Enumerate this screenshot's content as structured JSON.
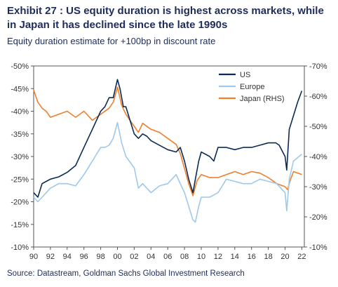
{
  "header": {
    "title": "Exhibit 27 : US equity duration is highest across markets, while in Japan it has declined since the late 1990s",
    "subtitle": "Equity duration estimate for +100bp in discount rate"
  },
  "footer": {
    "source": "Source: Datastream, Goldman Sachs Global Investment Research"
  },
  "colors": {
    "US": "#0b2a55",
    "Europe": "#9ec8ec",
    "Japan": "#ee7f2d"
  },
  "chart_data": {
    "type": "line",
    "title": "Exhibit 27 : US equity duration is highest across markets, while in Japan it has declined since the late 1990s",
    "subtitle": "Equity duration estimate for +100bp in discount rate",
    "x_tick_labels": [
      "90",
      "92",
      "94",
      "96",
      "98",
      "00",
      "02",
      "04",
      "06",
      "08",
      "10",
      "12",
      "14",
      "16",
      "18",
      "20",
      "22"
    ],
    "x_ticks": [
      1990,
      1992,
      1994,
      1996,
      1998,
      2000,
      2002,
      2004,
      2006,
      2008,
      2010,
      2012,
      2014,
      2016,
      2018,
      2020,
      2022
    ],
    "xlim": [
      1990,
      2022.3
    ],
    "left_axis": {
      "ticks": [
        -50,
        -45,
        -40,
        -35,
        -30,
        -25,
        -20,
        -15,
        -10
      ],
      "labels": [
        "-50%",
        "-45%",
        "-40%",
        "-35%",
        "-30%",
        "-25%",
        "-20%",
        "-15%",
        "-10%"
      ],
      "range": [
        -50,
        -10
      ]
    },
    "right_axis": {
      "ticks": [
        -70,
        -60,
        -50,
        -40,
        -30,
        -20,
        -10
      ],
      "labels": [
        "-70%",
        "-60%",
        "-50%",
        "-40%",
        "-30%",
        "-20%",
        "-10%"
      ],
      "range": [
        -70,
        -10
      ]
    },
    "legend": {
      "position": "top-right",
      "entries": [
        "US",
        "Europe",
        "Japan (RHS)"
      ]
    },
    "series": [
      {
        "name": "US",
        "axis": "left",
        "x": [
          1990,
          1990.5,
          1991,
          1991.5,
          1992,
          1993,
          1994,
          1995,
          1996,
          1997,
          1998,
          1998.5,
          1999,
          1999.5,
          2000,
          2000.3,
          2000.7,
          2001,
          2001.5,
          2002,
          2002.5,
          2003,
          2003.5,
          2004,
          2005,
          2006,
          2007,
          2007.5,
          2008,
          2008.5,
          2009,
          2009.3,
          2009.7,
          2010,
          2011,
          2011.5,
          2012,
          2013,
          2014,
          2015,
          2016,
          2017,
          2018,
          2018.9,
          2019.3,
          2020,
          2020.2,
          2020.5,
          2021,
          2021.5,
          2022
        ],
        "values": [
          -22,
          -21,
          -24,
          -24.5,
          -25,
          -25.5,
          -26.5,
          -28,
          -32,
          -36,
          -40,
          -41,
          -43,
          -43,
          -47,
          -45,
          -41,
          -41,
          -38,
          -35,
          -34,
          -35,
          -34.5,
          -33.5,
          -32.5,
          -31.5,
          -31,
          -32,
          -29,
          -25,
          -22,
          -25,
          -29,
          -31,
          -30,
          -29,
          -32,
          -32,
          -31.5,
          -32,
          -32,
          -32.5,
          -33,
          -33,
          -32.5,
          -30,
          -27,
          -36,
          -39,
          -42,
          -44.5
        ]
      },
      {
        "name": "Europe",
        "axis": "left",
        "x": [
          1990,
          1990.5,
          1991,
          1992,
          1993,
          1994,
          1995,
          1996,
          1997,
          1998,
          1998.5,
          1999,
          1999.5,
          2000,
          2000.5,
          2001,
          2002,
          2002.5,
          2003,
          2004,
          2005,
          2006,
          2007,
          2007.5,
          2008,
          2008.5,
          2009,
          2009.3,
          2009.7,
          2010,
          2011,
          2012,
          2013,
          2014,
          2015,
          2016,
          2017,
          2018,
          2019,
          2020,
          2020.2,
          2020.5,
          2021,
          2022
        ],
        "values": [
          -21,
          -20,
          -21,
          -23,
          -24,
          -24,
          -23.5,
          -26,
          -29,
          -32,
          -32,
          -32.5,
          -34,
          -37.5,
          -33,
          -30,
          -27.5,
          -23,
          -24,
          -22,
          -23.5,
          -24,
          -26,
          -24,
          -22,
          -19,
          -16,
          -15.5,
          -19,
          -21,
          -21,
          -22,
          -25,
          -24.5,
          -24,
          -24,
          -25,
          -24.5,
          -24,
          -22,
          -18,
          -25,
          -29,
          -30.5
        ]
      },
      {
        "name": "Japan (RHS)",
        "axis": "right",
        "x": [
          1990,
          1990.5,
          1991,
          1991.5,
          1992,
          1993,
          1994,
          1995,
          1996,
          1997,
          1998,
          1999,
          1999.5,
          2000,
          2000.5,
          2001,
          2001.5,
          2002,
          2002.5,
          2003,
          2004,
          2005,
          2006,
          2007,
          2007.5,
          2008,
          2008.5,
          2009,
          2009.5,
          2010,
          2011,
          2012,
          2013,
          2014,
          2015,
          2016,
          2017,
          2018,
          2019,
          2020,
          2020.3,
          2020.6,
          2021,
          2022
        ],
        "values": [
          -62,
          -58,
          -56,
          -55,
          -53,
          -54,
          -55,
          -53,
          -55,
          -52,
          -54,
          -56,
          -58,
          -63,
          -57,
          -54,
          -52,
          -50,
          -48,
          -51,
          -49,
          -48,
          -46,
          -44,
          -41,
          -36,
          -31,
          -27,
          -32,
          -34,
          -33,
          -33,
          -34,
          -35,
          -34,
          -35,
          -34.5,
          -33,
          -31,
          -30,
          -29,
          -32,
          -35,
          -34
        ]
      }
    ]
  }
}
